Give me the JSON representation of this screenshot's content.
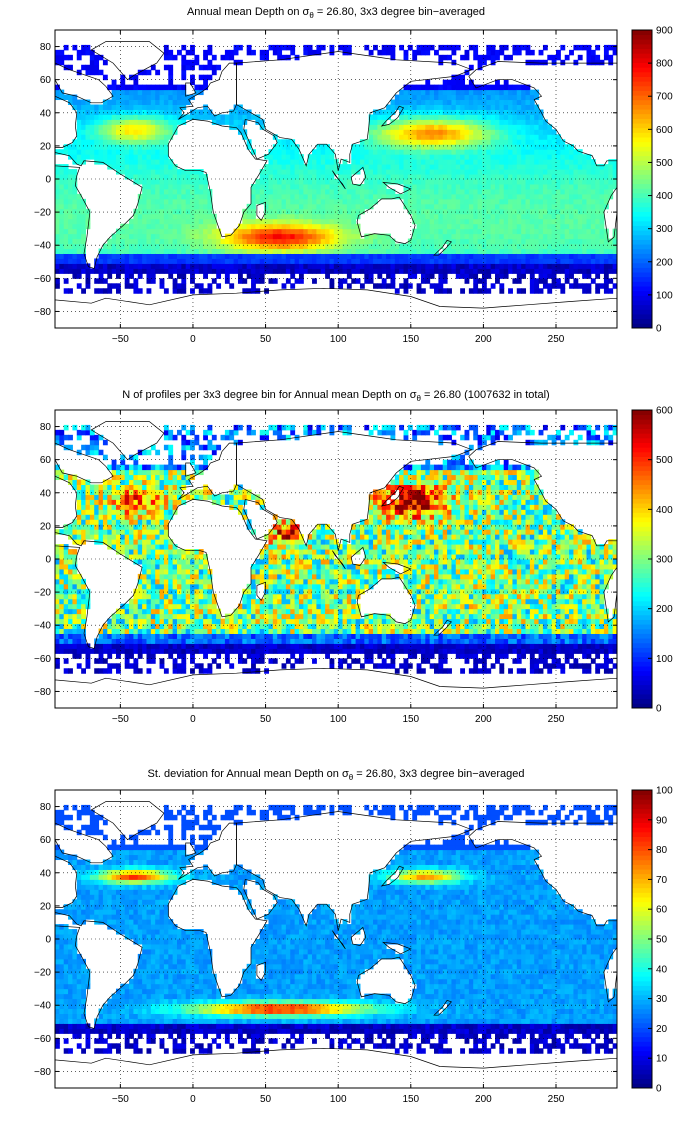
{
  "chart_data": [
    {
      "type": "heatmap",
      "title_pre": "Annual mean Depth on ",
      "title_sym": "σ",
      "title_sub": "θ",
      "title_post": " = 26.80, 3x3 degree bin−averaged",
      "xlabel": "",
      "ylabel": "",
      "xlim": [
        -95,
        292
      ],
      "ylim": [
        -90,
        90
      ],
      "xticks": [
        -50,
        0,
        50,
        100,
        150,
        200,
        250
      ],
      "yticks": [
        -80,
        -60,
        -40,
        -20,
        0,
        20,
        40,
        60,
        80
      ],
      "colorbar": {
        "min": 0,
        "max": 900,
        "ticks": [
          0,
          100,
          200,
          300,
          400,
          500,
          600,
          700,
          800,
          900
        ]
      },
      "grid": true
    },
    {
      "type": "heatmap",
      "title_pre": "N of profiles per 3x3 degree bin for Annual mean Depth on ",
      "title_sym": "σ",
      "title_sub": "θ",
      "title_post": " = 26.80 (1007632 in total)",
      "xlabel": "",
      "ylabel": "",
      "xlim": [
        -95,
        292
      ],
      "ylim": [
        -90,
        90
      ],
      "xticks": [
        -50,
        0,
        50,
        100,
        150,
        200,
        250
      ],
      "yticks": [
        -80,
        -60,
        -40,
        -20,
        0,
        20,
        40,
        60,
        80
      ],
      "colorbar": {
        "min": 0,
        "max": 600,
        "ticks": [
          0,
          100,
          200,
          300,
          400,
          500,
          600
        ]
      },
      "grid": true
    },
    {
      "type": "heatmap",
      "title_pre": "St. deviation for Annual mean Depth on ",
      "title_sym": "σ",
      "title_sub": "θ",
      "title_post": " = 26.80, 3x3 degree bin−averaged",
      "xlabel": "",
      "ylabel": "",
      "xlim": [
        -95,
        292
      ],
      "ylim": [
        -90,
        90
      ],
      "xticks": [
        -50,
        0,
        50,
        100,
        150,
        200,
        250
      ],
      "yticks": [
        -80,
        -60,
        -40,
        -20,
        0,
        20,
        40,
        60,
        80
      ],
      "colorbar": {
        "min": 0,
        "max": 100,
        "ticks": [
          0,
          10,
          20,
          30,
          40,
          50,
          60,
          70,
          80,
          90,
          100
        ]
      },
      "grid": true
    }
  ],
  "colors": {
    "colormap": "jet",
    "land": "#ffffff",
    "coast": "#000000"
  }
}
